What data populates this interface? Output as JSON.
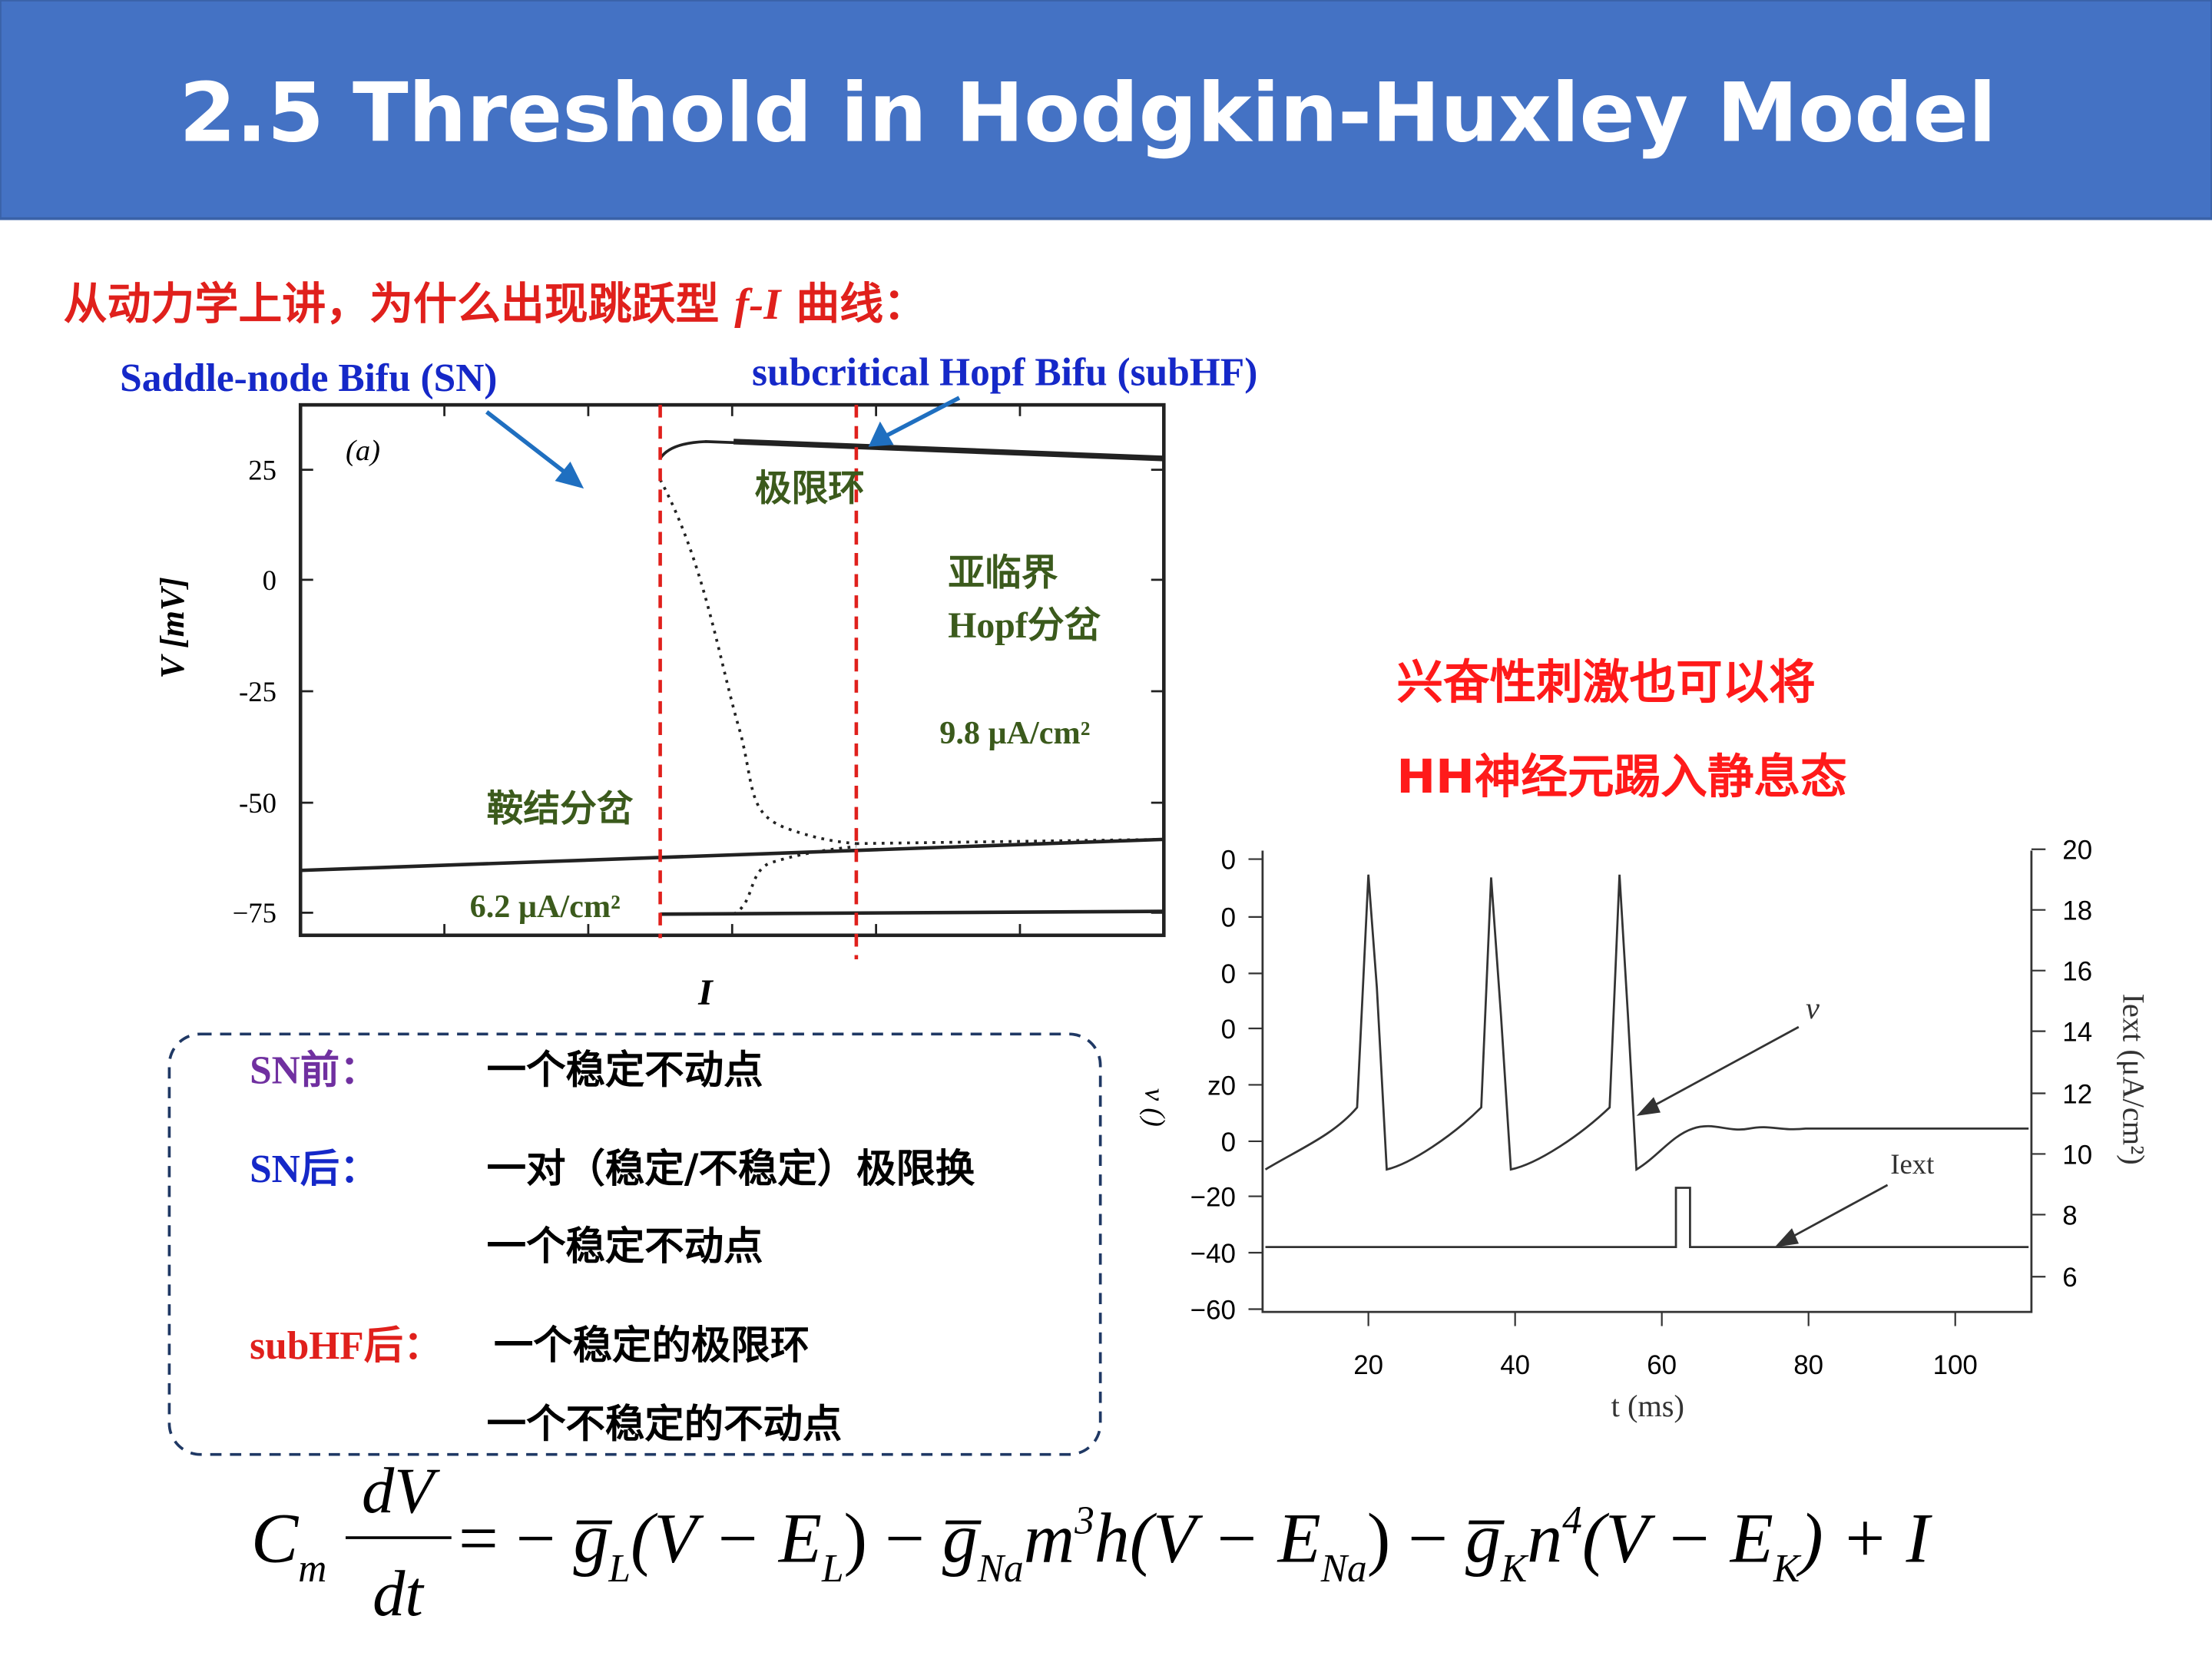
{
  "header": {
    "title": "2.5 Threshold in Hodgkin-Huxley Model"
  },
  "question": [
    "从动力学上讲，为什么出现跳跃型 ",
    "f-I",
    " 曲线："
  ],
  "labels": {
    "sn": "Saddle-node Bifu (SN)",
    "subhf": "subcritical Hopf Bifu (subHF)"
  },
  "plot_a": {
    "panel": "(a)",
    "yticks": [
      "25",
      "0",
      "-25",
      "-50",
      "−75"
    ],
    "ylabel": "V  [mV]",
    "xlabel": "I",
    "notes": {
      "limit_cycle": "极限环",
      "subcritical": "亚临界",
      "hopf": "Hopf分岔",
      "hopf_value": "9.8 μA/cm²",
      "saddle": "鞍结分岔",
      "saddle_value": "6.2 μA/cm²"
    }
  },
  "remark": [
    "兴奋性刺激也可以将",
    "HH神经元踢入静息态"
  ],
  "plot_b": {
    "yticks_left": [
      "0",
      "0",
      "0",
      "0",
      "z0",
      "0",
      "−20",
      "−40",
      "−60"
    ],
    "yticks_right": [
      "20",
      "18",
      "16",
      "14",
      "12",
      "10",
      "8",
      "6"
    ],
    "xticks": [
      "20",
      "40",
      "60",
      "80",
      "100"
    ],
    "xlabel": "t (ms)",
    "ylabel_left": "v ()",
    "ylabel_right": "Iext (μA/cm²)",
    "trace_v": "v",
    "trace_i": "Iext"
  },
  "box": [
    [
      "SN前：",
      "一个稳定不动点"
    ],
    [
      "SN后：",
      "一对（稳定/不稳定）极限换"
    ],
    [
      "",
      "一个稳定不动点"
    ],
    [
      "subHF后：",
      "一个稳定的极限环"
    ],
    [
      "",
      "一个不稳定的不动点"
    ]
  ],
  "equation": [
    "C",
    "m",
    "dV",
    "dt",
    "= − ",
    "g̅",
    "L",
    "(V − E",
    "L",
    ") − ",
    "g̅",
    "Na",
    "m",
    "3",
    "h(V − E",
    "Na",
    ") − ",
    "g̅",
    "K",
    "n",
    "4",
    "(V − E",
    "K",
    ") + I"
  ]
}
